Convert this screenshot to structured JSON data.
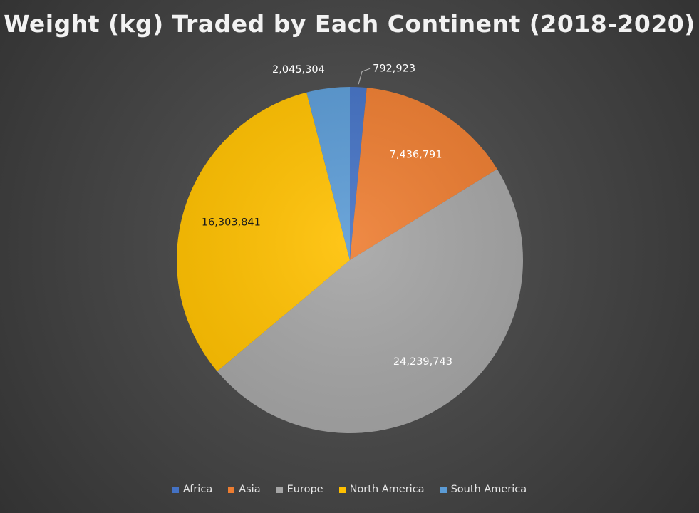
{
  "chart_data": {
    "type": "pie",
    "title": "Weight (kg) Traded by Each Continent (2018-2020)",
    "categories": [
      "Africa",
      "Asia",
      "Europe",
      "North America",
      "South America"
    ],
    "values": [
      792923,
      7436791,
      24239743,
      16303841,
      2045304
    ],
    "value_labels": [
      "792,923",
      "7,436,791",
      "24,239,743",
      "16,303,841",
      "2,045,304"
    ],
    "colors": [
      "#4472c4",
      "#ed7d31",
      "#a5a5a5",
      "#ffc000",
      "#5b9bd5"
    ],
    "label_colors": [
      "#ffffff",
      "#ffffff",
      "#ffffff",
      "#1a1a1a",
      "#ffffff"
    ],
    "legend_position": "bottom",
    "start_angle": "top",
    "direction": "clockwise"
  }
}
